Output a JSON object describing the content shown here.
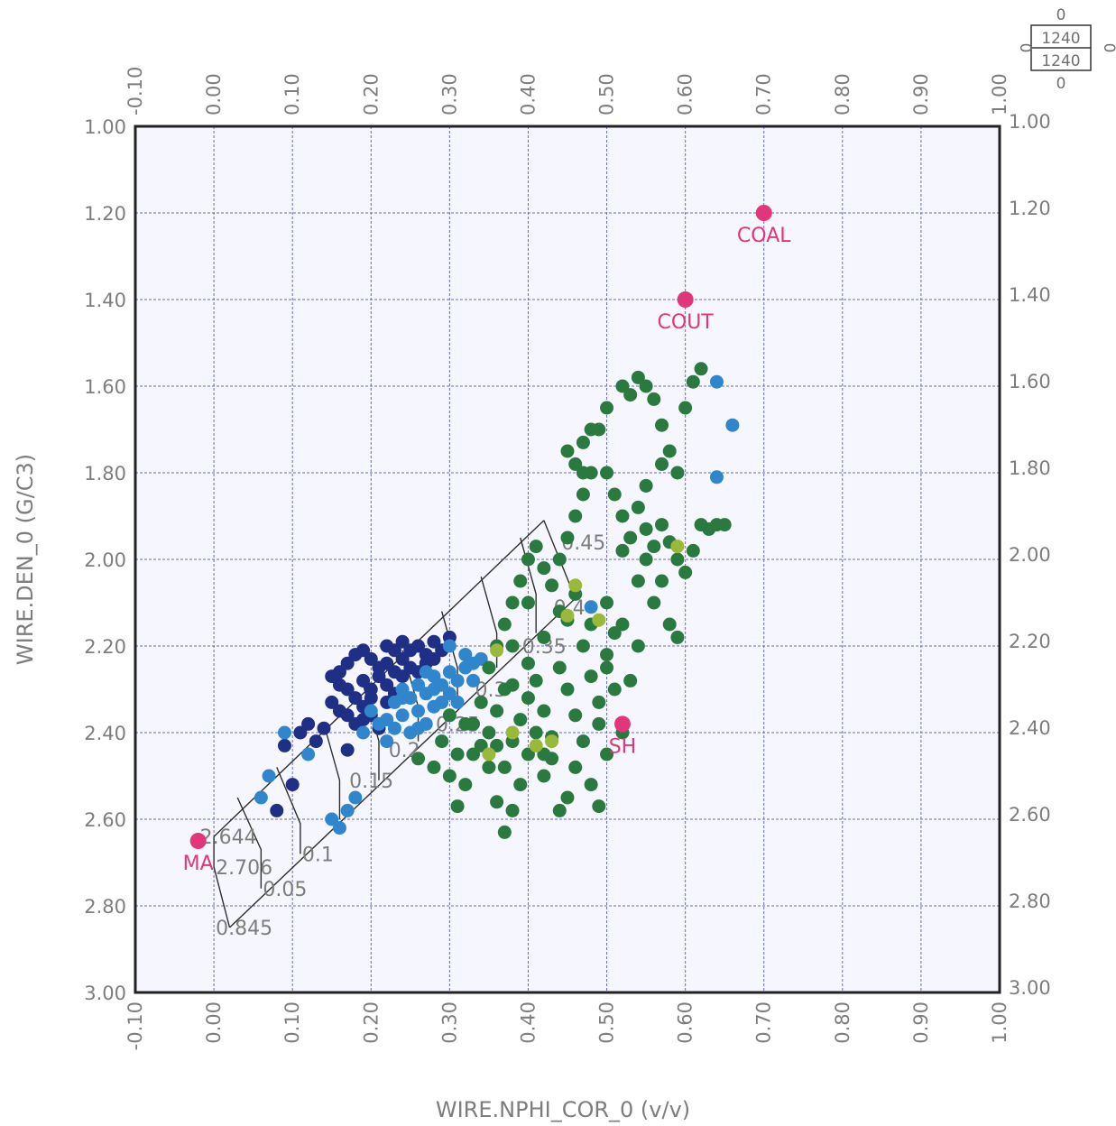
{
  "chart_data": {
    "type": "scatter",
    "title": "",
    "xlabel": "WIRE.NPHI_COR_0 (v/v)",
    "ylabel": "WIRE.DEN_0 (G/C3)",
    "xlim": [
      -0.1,
      1.0
    ],
    "ylim": [
      3.0,
      1.0
    ],
    "x_ticks": [
      "-0.10",
      "0.00",
      "0.10",
      "0.20",
      "0.30",
      "0.40",
      "0.50",
      "0.60",
      "0.70",
      "0.80",
      "0.90",
      "1.00"
    ],
    "y_ticks": [
      "1.00",
      "1.20",
      "1.40",
      "1.60",
      "1.80",
      "2.00",
      "2.20",
      "2.40",
      "2.60",
      "2.80",
      "3.00"
    ],
    "grid": true,
    "depth_range_box": {
      "top_value": "0",
      "from": "1240",
      "to": "1240",
      "left_value": "0",
      "right_value": "0",
      "bottom_value": "0"
    },
    "reference_points": [
      {
        "label": "COAL",
        "x": 0.7,
        "y": 1.2,
        "color": "#e2357c"
      },
      {
        "label": "COUT",
        "x": 0.6,
        "y": 1.4,
        "color": "#e2357c"
      },
      {
        "label": "SH",
        "x": 0.52,
        "y": 2.38,
        "color": "#e2357c"
      },
      {
        "label": "MA",
        "x": -0.02,
        "y": 2.65,
        "color": "#e2357c"
      }
    ],
    "overlay_chart": {
      "color": "#2f2f2f",
      "lines": [
        [
          [
            0.0,
            2.64
          ],
          [
            0.42,
            1.91
          ]
        ],
        [
          [
            0.02,
            2.85
          ],
          [
            0.46,
            2.09
          ]
        ],
        [
          [
            0.0,
            2.64
          ],
          [
            0.0,
            2.71
          ],
          [
            0.02,
            2.85
          ]
        ],
        [
          [
            0.42,
            1.91
          ],
          [
            0.46,
            2.09
          ]
        ],
        [
          [
            0.03,
            2.55
          ],
          [
            0.06,
            2.67
          ],
          [
            0.06,
            2.76
          ]
        ],
        [
          [
            0.08,
            2.48
          ],
          [
            0.11,
            2.61
          ],
          [
            0.11,
            2.68
          ]
        ],
        [
          [
            0.14,
            2.38
          ],
          [
            0.16,
            2.51
          ],
          [
            0.16,
            2.6
          ]
        ],
        [
          [
            0.19,
            2.29
          ],
          [
            0.21,
            2.42
          ],
          [
            0.21,
            2.51
          ]
        ],
        [
          [
            0.24,
            2.21
          ],
          [
            0.26,
            2.34
          ],
          [
            0.26,
            2.42
          ]
        ],
        [
          [
            0.29,
            2.12
          ],
          [
            0.31,
            2.25
          ],
          [
            0.31,
            2.34
          ]
        ],
        [
          [
            0.34,
            2.04
          ],
          [
            0.36,
            2.17
          ],
          [
            0.36,
            2.25
          ]
        ],
        [
          [
            0.39,
            1.95
          ],
          [
            0.41,
            2.08
          ],
          [
            0.41,
            2.17
          ]
        ]
      ],
      "labels": [
        {
          "text": "2.644",
          "x": -0.02,
          "y": 2.64
        },
        {
          "text": "2.706",
          "x": 0.0,
          "y": 2.71
        },
        {
          "text": "0.845",
          "x": 0.0,
          "y": 2.85
        },
        {
          "text": "0.05",
          "x": 0.06,
          "y": 2.76
        },
        {
          "text": "0.1",
          "x": 0.11,
          "y": 2.68
        },
        {
          "text": "0.15",
          "x": 0.17,
          "y": 2.51
        },
        {
          "text": "0.2",
          "x": 0.22,
          "y": 2.44
        },
        {
          "text": "0.25",
          "x": 0.28,
          "y": 2.38
        },
        {
          "text": "0.3",
          "x": 0.33,
          "y": 2.3
        },
        {
          "text": "0.35",
          "x": 0.39,
          "y": 2.2
        },
        {
          "text": "0.4",
          "x": 0.43,
          "y": 2.11
        },
        {
          "text": "0.45",
          "x": 0.44,
          "y": 1.96
        }
      ]
    },
    "series": [
      {
        "color": "#1f2f86",
        "points": [
          [
            0.16,
            2.26
          ],
          [
            0.17,
            2.24
          ],
          [
            0.18,
            2.22
          ],
          [
            0.19,
            2.21
          ],
          [
            0.2,
            2.23
          ],
          [
            0.21,
            2.25
          ],
          [
            0.22,
            2.2
          ],
          [
            0.23,
            2.21
          ],
          [
            0.24,
            2.19
          ],
          [
            0.25,
            2.21
          ],
          [
            0.26,
            2.2
          ],
          [
            0.27,
            2.22
          ],
          [
            0.28,
            2.19
          ],
          [
            0.29,
            2.21
          ],
          [
            0.3,
            2.18
          ],
          [
            0.17,
            2.3
          ],
          [
            0.18,
            2.32
          ],
          [
            0.19,
            2.28
          ],
          [
            0.2,
            2.3
          ],
          [
            0.21,
            2.27
          ],
          [
            0.22,
            2.29
          ],
          [
            0.23,
            2.26
          ],
          [
            0.24,
            2.27
          ],
          [
            0.25,
            2.25
          ],
          [
            0.26,
            2.26
          ],
          [
            0.15,
            2.33
          ],
          [
            0.16,
            2.35
          ],
          [
            0.17,
            2.36
          ],
          [
            0.18,
            2.38
          ],
          [
            0.19,
            2.34
          ],
          [
            0.2,
            2.36
          ],
          [
            0.21,
            2.39
          ],
          [
            0.22,
            2.33
          ],
          [
            0.23,
            2.31
          ],
          [
            0.11,
            2.4
          ],
          [
            0.12,
            2.38
          ],
          [
            0.13,
            2.42
          ],
          [
            0.09,
            2.43
          ],
          [
            0.1,
            2.52
          ],
          [
            0.08,
            2.58
          ],
          [
            0.17,
            2.44
          ],
          [
            0.14,
            2.39
          ],
          [
            0.24,
            2.23
          ],
          [
            0.27,
            2.24
          ],
          [
            0.28,
            2.23
          ],
          [
            0.15,
            2.27
          ],
          [
            0.16,
            2.29
          ],
          [
            0.19,
            2.37
          ],
          [
            0.2,
            2.32
          ],
          [
            0.22,
            2.24
          ]
        ]
      },
      {
        "color": "#2f86cc",
        "points": [
          [
            0.2,
            2.35
          ],
          [
            0.22,
            2.37
          ],
          [
            0.23,
            2.33
          ],
          [
            0.24,
            2.3
          ],
          [
            0.25,
            2.32
          ],
          [
            0.26,
            2.29
          ],
          [
            0.27,
            2.31
          ],
          [
            0.28,
            2.27
          ],
          [
            0.29,
            2.29
          ],
          [
            0.3,
            2.26
          ],
          [
            0.31,
            2.28
          ],
          [
            0.32,
            2.25
          ],
          [
            0.24,
            2.36
          ],
          [
            0.26,
            2.35
          ],
          [
            0.27,
            2.38
          ],
          [
            0.28,
            2.34
          ],
          [
            0.29,
            2.33
          ],
          [
            0.3,
            2.31
          ],
          [
            0.31,
            2.33
          ],
          [
            0.25,
            2.4
          ],
          [
            0.22,
            2.42
          ],
          [
            0.23,
            2.39
          ],
          [
            0.21,
            2.38
          ],
          [
            0.09,
            2.4
          ],
          [
            0.07,
            2.5
          ],
          [
            0.06,
            2.55
          ],
          [
            0.12,
            2.45
          ],
          [
            0.15,
            2.6
          ],
          [
            0.16,
            2.62
          ],
          [
            0.17,
            2.58
          ],
          [
            0.18,
            2.55
          ],
          [
            0.3,
            2.2
          ],
          [
            0.32,
            2.22
          ],
          [
            0.33,
            2.24
          ],
          [
            0.34,
            2.23
          ],
          [
            0.64,
            1.59
          ],
          [
            0.66,
            1.69
          ],
          [
            0.64,
            1.81
          ],
          [
            0.48,
            2.11
          ],
          [
            0.27,
            2.26
          ],
          [
            0.28,
            2.3
          ],
          [
            0.33,
            2.28
          ],
          [
            0.19,
            2.4
          ],
          [
            0.24,
            2.32
          ],
          [
            0.26,
            2.39
          ]
        ]
      },
      {
        "color": "#2a7a3f",
        "points": [
          [
            0.3,
            2.36
          ],
          [
            0.32,
            2.38
          ],
          [
            0.34,
            2.33
          ],
          [
            0.35,
            2.4
          ],
          [
            0.36,
            2.35
          ],
          [
            0.37,
            2.3
          ],
          [
            0.38,
            2.42
          ],
          [
            0.39,
            2.37
          ],
          [
            0.4,
            2.32
          ],
          [
            0.41,
            2.28
          ],
          [
            0.42,
            2.35
          ],
          [
            0.43,
            2.41
          ],
          [
            0.44,
            2.25
          ],
          [
            0.45,
            2.3
          ],
          [
            0.46,
            2.36
          ],
          [
            0.47,
            2.2
          ],
          [
            0.48,
            2.27
          ],
          [
            0.49,
            2.33
          ],
          [
            0.5,
            2.22
          ],
          [
            0.51,
            2.17
          ],
          [
            0.35,
            2.25
          ],
          [
            0.36,
            2.2
          ],
          [
            0.37,
            2.15
          ],
          [
            0.38,
            2.1
          ],
          [
            0.39,
            2.05
          ],
          [
            0.4,
            2.0
          ],
          [
            0.41,
            1.97
          ],
          [
            0.42,
            2.02
          ],
          [
            0.43,
            2.06
          ],
          [
            0.44,
            2.0
          ],
          [
            0.45,
            1.95
          ],
          [
            0.46,
            1.9
          ],
          [
            0.47,
            1.85
          ],
          [
            0.48,
            1.8
          ],
          [
            0.46,
            1.78
          ],
          [
            0.45,
            1.75
          ],
          [
            0.47,
            1.73
          ],
          [
            0.48,
            1.7
          ],
          [
            0.5,
            1.8
          ],
          [
            0.51,
            1.85
          ],
          [
            0.52,
            1.9
          ],
          [
            0.53,
            1.95
          ],
          [
            0.54,
            1.88
          ],
          [
            0.55,
            1.93
          ],
          [
            0.56,
            1.97
          ],
          [
            0.57,
            1.92
          ],
          [
            0.58,
            1.96
          ],
          [
            0.59,
            2.0
          ],
          [
            0.6,
            2.03
          ],
          [
            0.61,
            1.98
          ],
          [
            0.62,
            1.92
          ],
          [
            0.63,
            1.93
          ],
          [
            0.64,
            1.92
          ],
          [
            0.65,
            1.92
          ],
          [
            0.52,
            1.6
          ],
          [
            0.53,
            1.62
          ],
          [
            0.54,
            1.58
          ],
          [
            0.55,
            1.6
          ],
          [
            0.56,
            1.63
          ],
          [
            0.57,
            1.69
          ],
          [
            0.58,
            1.75
          ],
          [
            0.59,
            1.8
          ],
          [
            0.6,
            1.65
          ],
          [
            0.61,
            1.59
          ],
          [
            0.62,
            1.56
          ],
          [
            0.5,
            1.65
          ],
          [
            0.49,
            1.7
          ],
          [
            0.47,
            1.8
          ],
          [
            0.55,
            1.83
          ],
          [
            0.57,
            1.78
          ],
          [
            0.52,
            2.4
          ],
          [
            0.5,
            2.45
          ],
          [
            0.48,
            2.52
          ],
          [
            0.46,
            2.48
          ],
          [
            0.45,
            2.55
          ],
          [
            0.44,
            2.58
          ],
          [
            0.42,
            2.5
          ],
          [
            0.4,
            2.45
          ],
          [
            0.39,
            2.52
          ],
          [
            0.38,
            2.58
          ],
          [
            0.37,
            2.63
          ],
          [
            0.36,
            2.56
          ],
          [
            0.35,
            2.48
          ],
          [
            0.33,
            2.45
          ],
          [
            0.32,
            2.52
          ],
          [
            0.3,
            2.5
          ],
          [
            0.28,
            2.48
          ],
          [
            0.26,
            2.46
          ],
          [
            0.31,
            2.57
          ],
          [
            0.49,
            2.57
          ],
          [
            0.4,
            2.24
          ],
          [
            0.42,
            2.18
          ],
          [
            0.44,
            2.12
          ],
          [
            0.46,
            2.08
          ],
          [
            0.48,
            2.15
          ],
          [
            0.5,
            2.25
          ],
          [
            0.51,
            2.3
          ],
          [
            0.53,
            2.28
          ],
          [
            0.41,
            2.4
          ],
          [
            0.43,
            2.46
          ],
          [
            0.34,
            2.43
          ],
          [
            0.37,
            2.48
          ],
          [
            0.33,
            2.38
          ],
          [
            0.36,
            2.43
          ],
          [
            0.52,
            1.98
          ],
          [
            0.54,
            2.05
          ],
          [
            0.56,
            2.1
          ],
          [
            0.58,
            2.15
          ],
          [
            0.45,
            2.14
          ],
          [
            0.38,
            2.2
          ],
          [
            0.4,
            2.1
          ],
          [
            0.42,
            2.45
          ],
          [
            0.29,
            2.42
          ],
          [
            0.31,
            2.45
          ],
          [
            0.38,
            2.29
          ],
          [
            0.55,
            2.0
          ],
          [
            0.57,
            2.05
          ],
          [
            0.59,
            2.18
          ],
          [
            0.47,
            2.42
          ],
          [
            0.49,
            2.38
          ],
          [
            0.5,
            2.1
          ],
          [
            0.52,
            2.15
          ],
          [
            0.54,
            2.2
          ]
        ]
      },
      {
        "color": "#9ab83a",
        "points": [
          [
            0.36,
            2.21
          ],
          [
            0.41,
            2.43
          ],
          [
            0.45,
            2.13
          ],
          [
            0.49,
            2.14
          ],
          [
            0.46,
            2.06
          ],
          [
            0.43,
            2.42
          ],
          [
            0.59,
            1.97
          ],
          [
            0.35,
            2.45
          ],
          [
            0.38,
            2.4
          ]
        ]
      }
    ]
  }
}
